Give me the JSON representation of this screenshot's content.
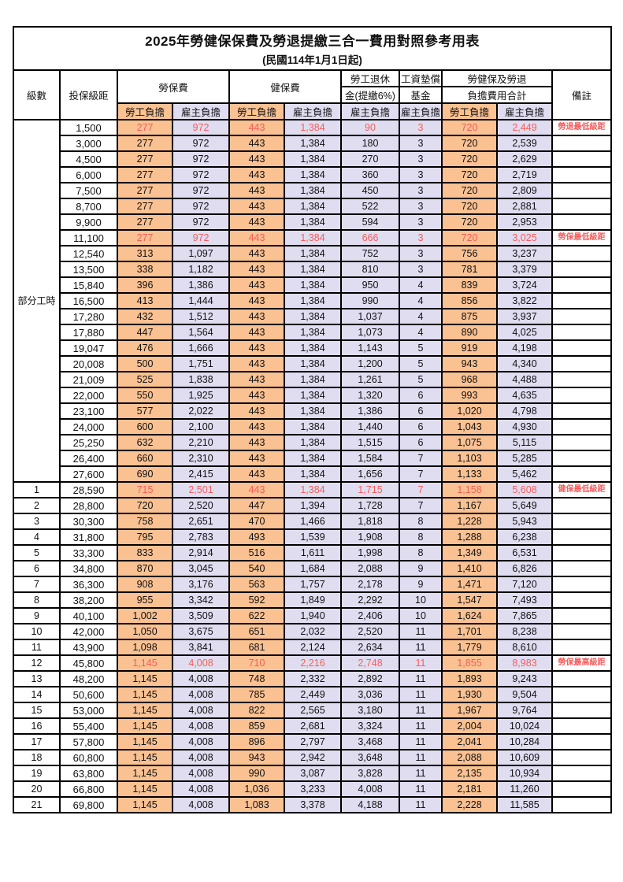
{
  "title": {
    "main": "2025年勞健保保費及勞退提繳三合一費用對照參考用表",
    "sub": "(民國114年1月1日起)"
  },
  "header": {
    "level": "級數",
    "bracket": "投保級距",
    "labor_insurance": "勞保費",
    "health_insurance": "健保費",
    "pension_line1": "勞工退休",
    "pension_line2": "金(提繳6%)",
    "wage_fund_line1": "工資墊償",
    "wage_fund_line2": "基金",
    "total_line1": "勞健保及勞退",
    "total_line2": "負擔費用合計",
    "remark": "備註",
    "employee_share": "勞工負擔",
    "employer_share": "雇主負擔"
  },
  "groups": {
    "part_time_label": "部分工時",
    "part_time_row_count": 23
  },
  "colors": {
    "employee_bg": "#FAC192",
    "employer_bg": "#E0DDF1",
    "highlight_red": "#F75D5D",
    "border": "#000000",
    "page_bg": "#FFFFFF"
  },
  "column_pattern": [
    "employee",
    "employer",
    "employee",
    "employer",
    "employer",
    "employer",
    "employee",
    "employer"
  ],
  "rows": [
    {
      "level": "",
      "bracket": "1,500",
      "values": [
        "277",
        "972",
        "443",
        "1,384",
        "90",
        "3",
        "720",
        "2,449"
      ],
      "remark": "勞退最低級距",
      "red": true
    },
    {
      "level": "",
      "bracket": "3,000",
      "values": [
        "277",
        "972",
        "443",
        "1,384",
        "180",
        "3",
        "720",
        "2,539"
      ],
      "remark": "",
      "red": false
    },
    {
      "level": "",
      "bracket": "4,500",
      "values": [
        "277",
        "972",
        "443",
        "1,384",
        "270",
        "3",
        "720",
        "2,629"
      ],
      "remark": "",
      "red": false
    },
    {
      "level": "",
      "bracket": "6,000",
      "values": [
        "277",
        "972",
        "443",
        "1,384",
        "360",
        "3",
        "720",
        "2,719"
      ],
      "remark": "",
      "red": false
    },
    {
      "level": "",
      "bracket": "7,500",
      "values": [
        "277",
        "972",
        "443",
        "1,384",
        "450",
        "3",
        "720",
        "2,809"
      ],
      "remark": "",
      "red": false
    },
    {
      "level": "",
      "bracket": "8,700",
      "values": [
        "277",
        "972",
        "443",
        "1,384",
        "522",
        "3",
        "720",
        "2,881"
      ],
      "remark": "",
      "red": false
    },
    {
      "level": "",
      "bracket": "9,900",
      "values": [
        "277",
        "972",
        "443",
        "1,384",
        "594",
        "3",
        "720",
        "2,953"
      ],
      "remark": "",
      "red": false
    },
    {
      "level": "",
      "bracket": "11,100",
      "values": [
        "277",
        "972",
        "443",
        "1,384",
        "666",
        "3",
        "720",
        "3,025"
      ],
      "remark": "勞保最低級距",
      "red": true
    },
    {
      "level": "",
      "bracket": "12,540",
      "values": [
        "313",
        "1,097",
        "443",
        "1,384",
        "752",
        "3",
        "756",
        "3,237"
      ],
      "remark": "",
      "red": false
    },
    {
      "level": "",
      "bracket": "13,500",
      "values": [
        "338",
        "1,182",
        "443",
        "1,384",
        "810",
        "3",
        "781",
        "3,379"
      ],
      "remark": "",
      "red": false
    },
    {
      "level": "",
      "bracket": "15,840",
      "values": [
        "396",
        "1,386",
        "443",
        "1,384",
        "950",
        "4",
        "839",
        "3,724"
      ],
      "remark": "",
      "red": false
    },
    {
      "level": "",
      "bracket": "16,500",
      "values": [
        "413",
        "1,444",
        "443",
        "1,384",
        "990",
        "4",
        "856",
        "3,822"
      ],
      "remark": "",
      "red": false
    },
    {
      "level": "",
      "bracket": "17,280",
      "values": [
        "432",
        "1,512",
        "443",
        "1,384",
        "1,037",
        "4",
        "875",
        "3,937"
      ],
      "remark": "",
      "red": false
    },
    {
      "level": "",
      "bracket": "17,880",
      "values": [
        "447",
        "1,564",
        "443",
        "1,384",
        "1,073",
        "4",
        "890",
        "4,025"
      ],
      "remark": "",
      "red": false
    },
    {
      "level": "",
      "bracket": "19,047",
      "values": [
        "476",
        "1,666",
        "443",
        "1,384",
        "1,143",
        "5",
        "919",
        "4,198"
      ],
      "remark": "",
      "red": false
    },
    {
      "level": "",
      "bracket": "20,008",
      "values": [
        "500",
        "1,751",
        "443",
        "1,384",
        "1,200",
        "5",
        "943",
        "4,340"
      ],
      "remark": "",
      "red": false
    },
    {
      "level": "",
      "bracket": "21,009",
      "values": [
        "525",
        "1,838",
        "443",
        "1,384",
        "1,261",
        "5",
        "968",
        "4,488"
      ],
      "remark": "",
      "red": false
    },
    {
      "level": "",
      "bracket": "22,000",
      "values": [
        "550",
        "1,925",
        "443",
        "1,384",
        "1,320",
        "6",
        "993",
        "4,635"
      ],
      "remark": "",
      "red": false
    },
    {
      "level": "",
      "bracket": "23,100",
      "values": [
        "577",
        "2,022",
        "443",
        "1,384",
        "1,386",
        "6",
        "1,020",
        "4,798"
      ],
      "remark": "",
      "red": false
    },
    {
      "level": "",
      "bracket": "24,000",
      "values": [
        "600",
        "2,100",
        "443",
        "1,384",
        "1,440",
        "6",
        "1,043",
        "4,930"
      ],
      "remark": "",
      "red": false
    },
    {
      "level": "",
      "bracket": "25,250",
      "values": [
        "632",
        "2,210",
        "443",
        "1,384",
        "1,515",
        "6",
        "1,075",
        "5,115"
      ],
      "remark": "",
      "red": false
    },
    {
      "level": "",
      "bracket": "26,400",
      "values": [
        "660",
        "2,310",
        "443",
        "1,384",
        "1,584",
        "7",
        "1,103",
        "5,285"
      ],
      "remark": "",
      "red": false
    },
    {
      "level": "",
      "bracket": "27,600",
      "values": [
        "690",
        "2,415",
        "443",
        "1,384",
        "1,656",
        "7",
        "1,133",
        "5,462"
      ],
      "remark": "",
      "red": false
    },
    {
      "level": "1",
      "bracket": "28,590",
      "values": [
        "715",
        "2,501",
        "443",
        "1,384",
        "1,715",
        "7",
        "1,158",
        "5,608"
      ],
      "remark": "健保最低級距",
      "red": true
    },
    {
      "level": "2",
      "bracket": "28,800",
      "values": [
        "720",
        "2,520",
        "447",
        "1,394",
        "1,728",
        "7",
        "1,167",
        "5,649"
      ],
      "remark": "",
      "red": false
    },
    {
      "level": "3",
      "bracket": "30,300",
      "values": [
        "758",
        "2,651",
        "470",
        "1,466",
        "1,818",
        "8",
        "1,228",
        "5,943"
      ],
      "remark": "",
      "red": false
    },
    {
      "level": "4",
      "bracket": "31,800",
      "values": [
        "795",
        "2,783",
        "493",
        "1,539",
        "1,908",
        "8",
        "1,288",
        "6,238"
      ],
      "remark": "",
      "red": false
    },
    {
      "level": "5",
      "bracket": "33,300",
      "values": [
        "833",
        "2,914",
        "516",
        "1,611",
        "1,998",
        "8",
        "1,349",
        "6,531"
      ],
      "remark": "",
      "red": false
    },
    {
      "level": "6",
      "bracket": "34,800",
      "values": [
        "870",
        "3,045",
        "540",
        "1,684",
        "2,088",
        "9",
        "1,410",
        "6,826"
      ],
      "remark": "",
      "red": false
    },
    {
      "level": "7",
      "bracket": "36,300",
      "values": [
        "908",
        "3,176",
        "563",
        "1,757",
        "2,178",
        "9",
        "1,471",
        "7,120"
      ],
      "remark": "",
      "red": false
    },
    {
      "level": "8",
      "bracket": "38,200",
      "values": [
        "955",
        "3,342",
        "592",
        "1,849",
        "2,292",
        "10",
        "1,547",
        "7,493"
      ],
      "remark": "",
      "red": false
    },
    {
      "level": "9",
      "bracket": "40,100",
      "values": [
        "1,002",
        "3,509",
        "622",
        "1,940",
        "2,406",
        "10",
        "1,624",
        "7,865"
      ],
      "remark": "",
      "red": false
    },
    {
      "level": "10",
      "bracket": "42,000",
      "values": [
        "1,050",
        "3,675",
        "651",
        "2,032",
        "2,520",
        "11",
        "1,701",
        "8,238"
      ],
      "remark": "",
      "red": false
    },
    {
      "level": "11",
      "bracket": "43,900",
      "values": [
        "1,098",
        "3,841",
        "681",
        "2,124",
        "2,634",
        "11",
        "1,779",
        "8,610"
      ],
      "remark": "",
      "red": false
    },
    {
      "level": "12",
      "bracket": "45,800",
      "values": [
        "1,145",
        "4,008",
        "710",
        "2,216",
        "2,748",
        "11",
        "1,855",
        "8,983"
      ],
      "remark": "勞保最高級距",
      "red": true
    },
    {
      "level": "13",
      "bracket": "48,200",
      "values": [
        "1,145",
        "4,008",
        "748",
        "2,332",
        "2,892",
        "11",
        "1,893",
        "9,243"
      ],
      "remark": "",
      "red": false
    },
    {
      "level": "14",
      "bracket": "50,600",
      "values": [
        "1,145",
        "4,008",
        "785",
        "2,449",
        "3,036",
        "11",
        "1,930",
        "9,504"
      ],
      "remark": "",
      "red": false
    },
    {
      "level": "15",
      "bracket": "53,000",
      "values": [
        "1,145",
        "4,008",
        "822",
        "2,565",
        "3,180",
        "11",
        "1,967",
        "9,764"
      ],
      "remark": "",
      "red": false
    },
    {
      "level": "16",
      "bracket": "55,400",
      "values": [
        "1,145",
        "4,008",
        "859",
        "2,681",
        "3,324",
        "11",
        "2,004",
        "10,024"
      ],
      "remark": "",
      "red": false
    },
    {
      "level": "17",
      "bracket": "57,800",
      "values": [
        "1,145",
        "4,008",
        "896",
        "2,797",
        "3,468",
        "11",
        "2,041",
        "10,284"
      ],
      "remark": "",
      "red": false
    },
    {
      "level": "18",
      "bracket": "60,800",
      "values": [
        "1,145",
        "4,008",
        "943",
        "2,942",
        "3,648",
        "11",
        "2,088",
        "10,609"
      ],
      "remark": "",
      "red": false
    },
    {
      "level": "19",
      "bracket": "63,800",
      "values": [
        "1,145",
        "4,008",
        "990",
        "3,087",
        "3,828",
        "11",
        "2,135",
        "10,934"
      ],
      "remark": "",
      "red": false
    },
    {
      "level": "20",
      "bracket": "66,800",
      "values": [
        "1,145",
        "4,008",
        "1,036",
        "3,233",
        "4,008",
        "11",
        "2,181",
        "11,260"
      ],
      "remark": "",
      "red": false
    },
    {
      "level": "21",
      "bracket": "69,800",
      "values": [
        "1,145",
        "4,008",
        "1,083",
        "3,378",
        "4,188",
        "11",
        "2,228",
        "11,585"
      ],
      "remark": "",
      "red": false
    }
  ]
}
